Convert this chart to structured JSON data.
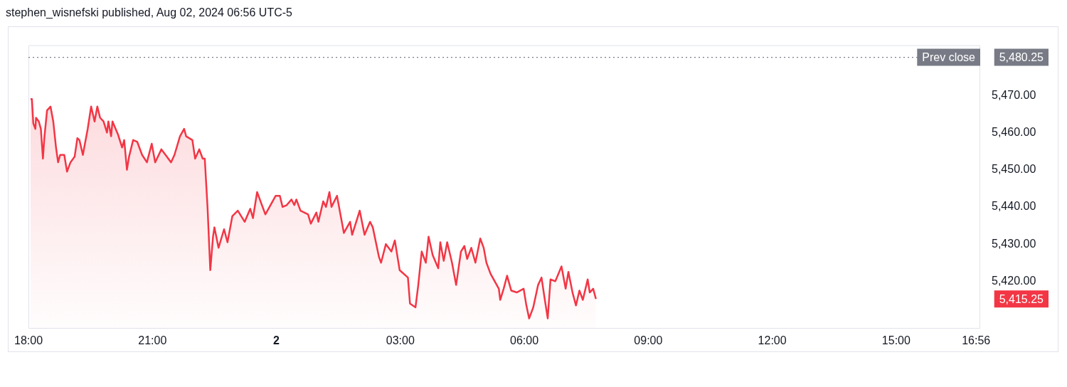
{
  "chart_data": {
    "type": "area",
    "title": "stephen_wisnefski published, Aug 02, 2024 06:56 UTC-5",
    "x": [
      "2024-08-01T18:03",
      "2024-08-01T18:05",
      "2024-08-01T18:07",
      "2024-08-01T18:10",
      "2024-08-01T18:11",
      "2024-08-01T18:15",
      "2024-08-01T18:18",
      "2024-08-01T18:21",
      "2024-08-01T18:23",
      "2024-08-01T18:27",
      "2024-08-01T18:32",
      "2024-08-01T18:36",
      "2024-08-01T18:40",
      "2024-08-01T18:43",
      "2024-08-01T18:46",
      "2024-08-01T18:52",
      "2024-08-01T18:56",
      "2024-08-01T19:01",
      "2024-08-01T19:07",
      "2024-08-01T19:11",
      "2024-08-01T19:14",
      "2024-08-01T19:19",
      "2024-08-01T19:22",
      "2024-08-01T19:26",
      "2024-08-01T19:31",
      "2024-08-01T19:36",
      "2024-08-01T19:40",
      "2024-08-01T19:44",
      "2024-08-01T19:49",
      "2024-08-01T19:54",
      "2024-08-01T19:56",
      "2024-08-01T20:00",
      "2024-08-01T20:02",
      "2024-08-01T20:10",
      "2024-08-01T20:16",
      "2024-08-01T20:19",
      "2024-08-01T20:23",
      "2024-08-01T20:26",
      "2024-08-01T20:32",
      "2024-08-01T20:38",
      "2024-08-01T20:45",
      "2024-08-01T20:52",
      "2024-08-01T20:59",
      "2024-08-01T21:04",
      "2024-08-01T21:13",
      "2024-08-01T21:21",
      "2024-08-01T21:27",
      "2024-08-01T21:32",
      "2024-08-01T21:40",
      "2024-08-01T21:46",
      "2024-08-01T21:49",
      "2024-08-01T21:58",
      "2024-08-01T22:02",
      "2024-08-01T22:08",
      "2024-08-01T22:13",
      "2024-08-01T22:16",
      "2024-08-01T22:20",
      "2024-08-01T22:24",
      "2024-08-01T22:28",
      "2024-08-01T22:30",
      "2024-08-01T22:36",
      "2024-08-01T22:44",
      "2024-08-01T22:49",
      "2024-08-01T22:56",
      "2024-08-01T23:04",
      "2024-08-01T23:14",
      "2024-08-01T23:22",
      "2024-08-01T23:26",
      "2024-08-01T23:32",
      "2024-08-01T23:44",
      "2024-08-01T23:50",
      "2024-08-01T23:59",
      "2024-08-02T00:05",
      "2024-08-02T00:09",
      "2024-08-02T00:15",
      "2024-08-02T00:22",
      "2024-08-02T00:26",
      "2024-08-02T00:29",
      "2024-08-02T00:35",
      "2024-08-02T00:46",
      "2024-08-02T00:50",
      "2024-08-02T00:58",
      "2024-08-02T01:01",
      "2024-08-02T01:08",
      "2024-08-02T01:12",
      "2024-08-02T01:17",
      "2024-08-02T01:20",
      "2024-08-02T01:28",
      "2024-08-02T01:38",
      "2024-08-02T01:47",
      "2024-08-02T01:50",
      "2024-08-02T02:01",
      "2024-08-02T02:08",
      "2024-08-02T02:16",
      "2024-08-02T02:20",
      "2024-08-02T02:29",
      "2024-08-02T02:32",
      "2024-08-02T02:39",
      "2024-08-02T02:47",
      "2024-08-02T02:52",
      "2024-08-02T02:59",
      "2024-08-02T03:11",
      "2024-08-02T03:14",
      "2024-08-02T03:22",
      "2024-08-02T03:26",
      "2024-08-02T03:31",
      "2024-08-02T03:37",
      "2024-08-02T03:41",
      "2024-08-02T03:47",
      "2024-08-02T03:55",
      "2024-08-02T03:58",
      "2024-08-02T04:03",
      "2024-08-02T04:08",
      "2024-08-02T04:15",
      "2024-08-02T04:21",
      "2024-08-02T04:28",
      "2024-08-02T04:33",
      "2024-08-02T04:37",
      "2024-08-02T04:43",
      "2024-08-02T04:49",
      "2024-08-02T04:56",
      "2024-08-02T05:01",
      "2024-08-02T05:05",
      "2024-08-02T05:11",
      "2024-08-02T05:23",
      "2024-08-02T05:25",
      "2024-08-02T05:30",
      "2024-08-02T05:35",
      "2024-08-02T05:41",
      "2024-08-02T05:49",
      "2024-08-02T05:59",
      "2024-08-02T06:03",
      "2024-08-02T06:07",
      "2024-08-02T06:13",
      "2024-08-02T06:20",
      "2024-08-02T06:25",
      "2024-08-02T06:29",
      "2024-08-02T06:34",
      "2024-08-02T06:38",
      "2024-08-02T06:45",
      "2024-08-02T06:54",
      "2024-08-02T07:00",
      "2024-08-02T07:04",
      "2024-08-02T07:10",
      "2024-08-02T07:15",
      "2024-08-02T07:20",
      "2024-08-02T07:25",
      "2024-08-02T07:32",
      "2024-08-02T07:35",
      "2024-08-02T07:40",
      "2024-08-02T07:44"
    ],
    "series": [
      {
        "color": "#f23645",
        "values": [
          5469,
          5469,
          5462.5,
          5461,
          5464,
          5463,
          5461,
          5453,
          5458.5,
          5466,
          5467,
          5463,
          5456,
          5452,
          5454,
          5454,
          5449.5,
          5452,
          5453.5,
          5458.5,
          5458,
          5454,
          5457,
          5461,
          5467,
          5463,
          5467,
          5464,
          5463,
          5460,
          5463,
          5459,
          5463,
          5459.5,
          5456,
          5458,
          5450,
          5453.5,
          5458,
          5457.5,
          5454,
          5452,
          5457,
          5452,
          5455.5,
          5453.5,
          5452,
          5454,
          5459,
          5461,
          5459,
          5458,
          5453,
          5455.5,
          5453,
          5453,
          5440,
          5423,
          5432,
          5434.5,
          5429,
          5434,
          5430.5,
          5437.5,
          5439,
          5436,
          5439.5,
          5437,
          5444,
          5438,
          5440,
          5443,
          5443,
          5440,
          5440.5,
          5442,
          5440.5,
          5442,
          5439,
          5438,
          5435.5,
          5438.5,
          5436,
          5441.5,
          5440,
          5444,
          5440,
          5443,
          5433,
          5436,
          5432.5,
          5439,
          5432.5,
          5436,
          5434.5,
          5426.5,
          5425,
          5430,
          5428,
          5431,
          5423,
          5421,
          5414,
          5413,
          5419,
          5428,
          5425,
          5432,
          5427,
          5423.5,
          5430.5,
          5425.5,
          5430.5,
          5425,
          5419,
          5428,
          5429.5,
          5426,
          5429,
          5425,
          5431.5,
          5429,
          5425,
          5422,
          5418,
          5415,
          5418,
          5421.5,
          5417.5,
          5417,
          5418,
          5413.5,
          5410,
          5413,
          5419,
          5421,
          5416,
          5410,
          5420.5,
          5420,
          5424,
          5418,
          5422.5,
          5417,
          5413.5,
          5417.5,
          5415,
          5420.5,
          5417,
          5418,
          5415.25
        ]
      }
    ],
    "xlim": [
      "2024-08-01T18:00",
      "2024-08-02T17:02"
    ],
    "xticks": [
      {
        "value": "2024-08-01T18:00",
        "label": "18:00"
      },
      {
        "value": "2024-08-01T21:00",
        "label": "21:00"
      },
      {
        "value": "2024-08-02T00:00",
        "label": "2"
      },
      {
        "value": "2024-08-02T03:00",
        "label": "03:00"
      },
      {
        "value": "2024-08-02T06:00",
        "label": "06:00"
      },
      {
        "value": "2024-08-02T09:00",
        "label": "09:00"
      },
      {
        "value": "2024-08-02T12:00",
        "label": "12:00"
      },
      {
        "value": "2024-08-02T15:00",
        "label": "15:00"
      },
      {
        "value": "2024-08-02T16:56",
        "label": "16:56"
      }
    ],
    "ylim": [
      5407.25,
      5483.5
    ],
    "yticks": [
      {
        "value": 5420,
        "label": "5,420.00"
      },
      {
        "value": 5430,
        "label": "5,430.00"
      },
      {
        "value": 5440,
        "label": "5,440.00"
      },
      {
        "value": 5450,
        "label": "5,450.00"
      },
      {
        "value": 5460,
        "label": "5,460.00"
      },
      {
        "value": 5470,
        "label": "5,470.00"
      }
    ],
    "ref_lines": [
      {
        "axis": "y",
        "value": 5480.25,
        "label": "Prev close",
        "color": "#787b86",
        "line_style": "dotted"
      }
    ],
    "annotations": [
      "5,480.25",
      "5,415.25"
    ]
  }
}
